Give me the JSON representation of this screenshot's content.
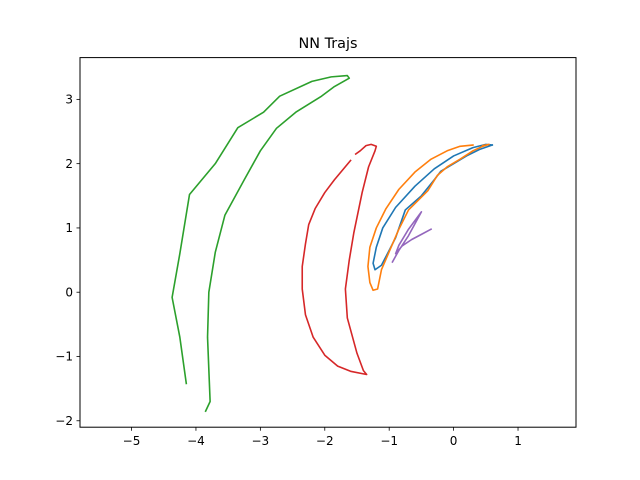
{
  "chart_data": {
    "type": "line",
    "title": "NN Trajs",
    "xlabel": "",
    "ylabel": "",
    "xlim": [
      -5.8,
      1.9
    ],
    "ylim": [
      -2.1,
      3.65
    ],
    "xticks": [
      -5,
      -4,
      -3,
      -2,
      -1,
      0,
      1
    ],
    "yticks": [
      -2,
      -1,
      0,
      1,
      2,
      3
    ],
    "xtick_labels": [
      "−5",
      "−4",
      "−3",
      "−2",
      "−1",
      "0",
      "1"
    ],
    "ytick_labels": [
      "−2",
      "−1",
      "0",
      "1",
      "2",
      "3"
    ],
    "grid": false,
    "legend": "none",
    "series": [
      {
        "color": "#1f77b4",
        "points": [
          [
            0.6,
            2.29
          ],
          [
            0.5,
            2.3
          ],
          [
            0.3,
            2.25
          ],
          [
            0.0,
            2.12
          ],
          [
            -0.3,
            1.92
          ],
          [
            -0.6,
            1.65
          ],
          [
            -0.9,
            1.32
          ],
          [
            -1.1,
            1.0
          ],
          [
            -1.2,
            0.7
          ],
          [
            -1.25,
            0.45
          ],
          [
            -1.22,
            0.35
          ],
          [
            -1.12,
            0.42
          ],
          [
            -1.0,
            0.65
          ],
          [
            -0.9,
            0.85
          ],
          [
            -0.75,
            1.28
          ],
          [
            -0.5,
            1.5
          ],
          [
            -0.3,
            1.75
          ],
          [
            -0.2,
            1.88
          ],
          [
            0.0,
            2.0
          ],
          [
            0.2,
            2.12
          ],
          [
            0.4,
            2.22
          ],
          [
            0.6,
            2.29
          ]
        ]
      },
      {
        "color": "#ff7f0e",
        "points": [
          [
            0.3,
            2.29
          ],
          [
            0.1,
            2.27
          ],
          [
            -0.1,
            2.2
          ],
          [
            -0.35,
            2.07
          ],
          [
            -0.6,
            1.87
          ],
          [
            -0.85,
            1.6
          ],
          [
            -1.05,
            1.3
          ],
          [
            -1.2,
            1.0
          ],
          [
            -1.3,
            0.7
          ],
          [
            -1.33,
            0.4
          ],
          [
            -1.3,
            0.15
          ],
          [
            -1.25,
            0.03
          ],
          [
            -1.18,
            0.05
          ],
          [
            -1.12,
            0.35
          ],
          [
            -1.0,
            0.63
          ],
          [
            -0.85,
            0.98
          ],
          [
            -0.7,
            1.28
          ],
          [
            -0.4,
            1.58
          ],
          [
            -0.25,
            1.82
          ],
          [
            -0.1,
            1.95
          ],
          [
            0.1,
            2.07
          ],
          [
            0.3,
            2.2
          ],
          [
            0.45,
            2.27
          ],
          [
            0.55,
            2.3
          ],
          [
            0.45,
            2.28
          ]
        ]
      },
      {
        "color": "#2ca02c",
        "points": [
          [
            -4.15,
            -1.42
          ],
          [
            -4.25,
            -0.7
          ],
          [
            -4.37,
            -0.08
          ],
          [
            -4.25,
            0.6
          ],
          [
            -4.1,
            1.52
          ],
          [
            -3.7,
            2.0
          ],
          [
            -3.35,
            2.56
          ],
          [
            -2.95,
            2.8
          ],
          [
            -2.7,
            3.05
          ],
          [
            -2.2,
            3.28
          ],
          [
            -1.9,
            3.35
          ],
          [
            -1.65,
            3.37
          ],
          [
            -1.62,
            3.33
          ],
          [
            -1.85,
            3.2
          ],
          [
            -2.05,
            3.05
          ],
          [
            -2.45,
            2.8
          ],
          [
            -2.75,
            2.55
          ],
          [
            -3.0,
            2.2
          ],
          [
            -3.25,
            1.75
          ],
          [
            -3.55,
            1.2
          ],
          [
            -3.7,
            0.62
          ],
          [
            -3.8,
            0.0
          ],
          [
            -3.82,
            -0.7
          ],
          [
            -3.78,
            -1.7
          ],
          [
            -3.85,
            -1.85
          ]
        ]
      },
      {
        "color": "#d62728",
        "points": [
          [
            -1.6,
            2.05
          ],
          [
            -1.85,
            1.75
          ],
          [
            -2.0,
            1.55
          ],
          [
            -2.15,
            1.3
          ],
          [
            -2.25,
            1.05
          ],
          [
            -2.3,
            0.75
          ],
          [
            -2.35,
            0.4
          ],
          [
            -2.35,
            0.05
          ],
          [
            -2.3,
            -0.35
          ],
          [
            -2.18,
            -0.7
          ],
          [
            -2.0,
            -0.98
          ],
          [
            -1.8,
            -1.15
          ],
          [
            -1.6,
            -1.23
          ],
          [
            -1.35,
            -1.28
          ],
          [
            -1.4,
            -1.22
          ],
          [
            -1.5,
            -0.95
          ],
          [
            -1.65,
            -0.4
          ],
          [
            -1.68,
            0.05
          ],
          [
            -1.62,
            0.5
          ],
          [
            -1.55,
            0.92
          ],
          [
            -1.42,
            1.55
          ],
          [
            -1.32,
            1.95
          ],
          [
            -1.22,
            2.2
          ],
          [
            -1.2,
            2.27
          ],
          [
            -1.28,
            2.3
          ],
          [
            -1.36,
            2.28
          ],
          [
            -1.45,
            2.2
          ],
          [
            -1.52,
            2.15
          ]
        ]
      },
      {
        "color": "#9467bd",
        "points": [
          [
            -0.95,
            0.47
          ],
          [
            -0.85,
            0.65
          ],
          [
            -0.7,
            0.88
          ],
          [
            -0.5,
            1.25
          ],
          [
            -0.7,
            0.98
          ],
          [
            -0.85,
            0.73
          ],
          [
            -0.9,
            0.6
          ],
          [
            -0.8,
            0.72
          ],
          [
            -0.65,
            0.82
          ],
          [
            -0.5,
            0.9
          ],
          [
            -0.35,
            0.98
          ]
        ]
      }
    ]
  }
}
